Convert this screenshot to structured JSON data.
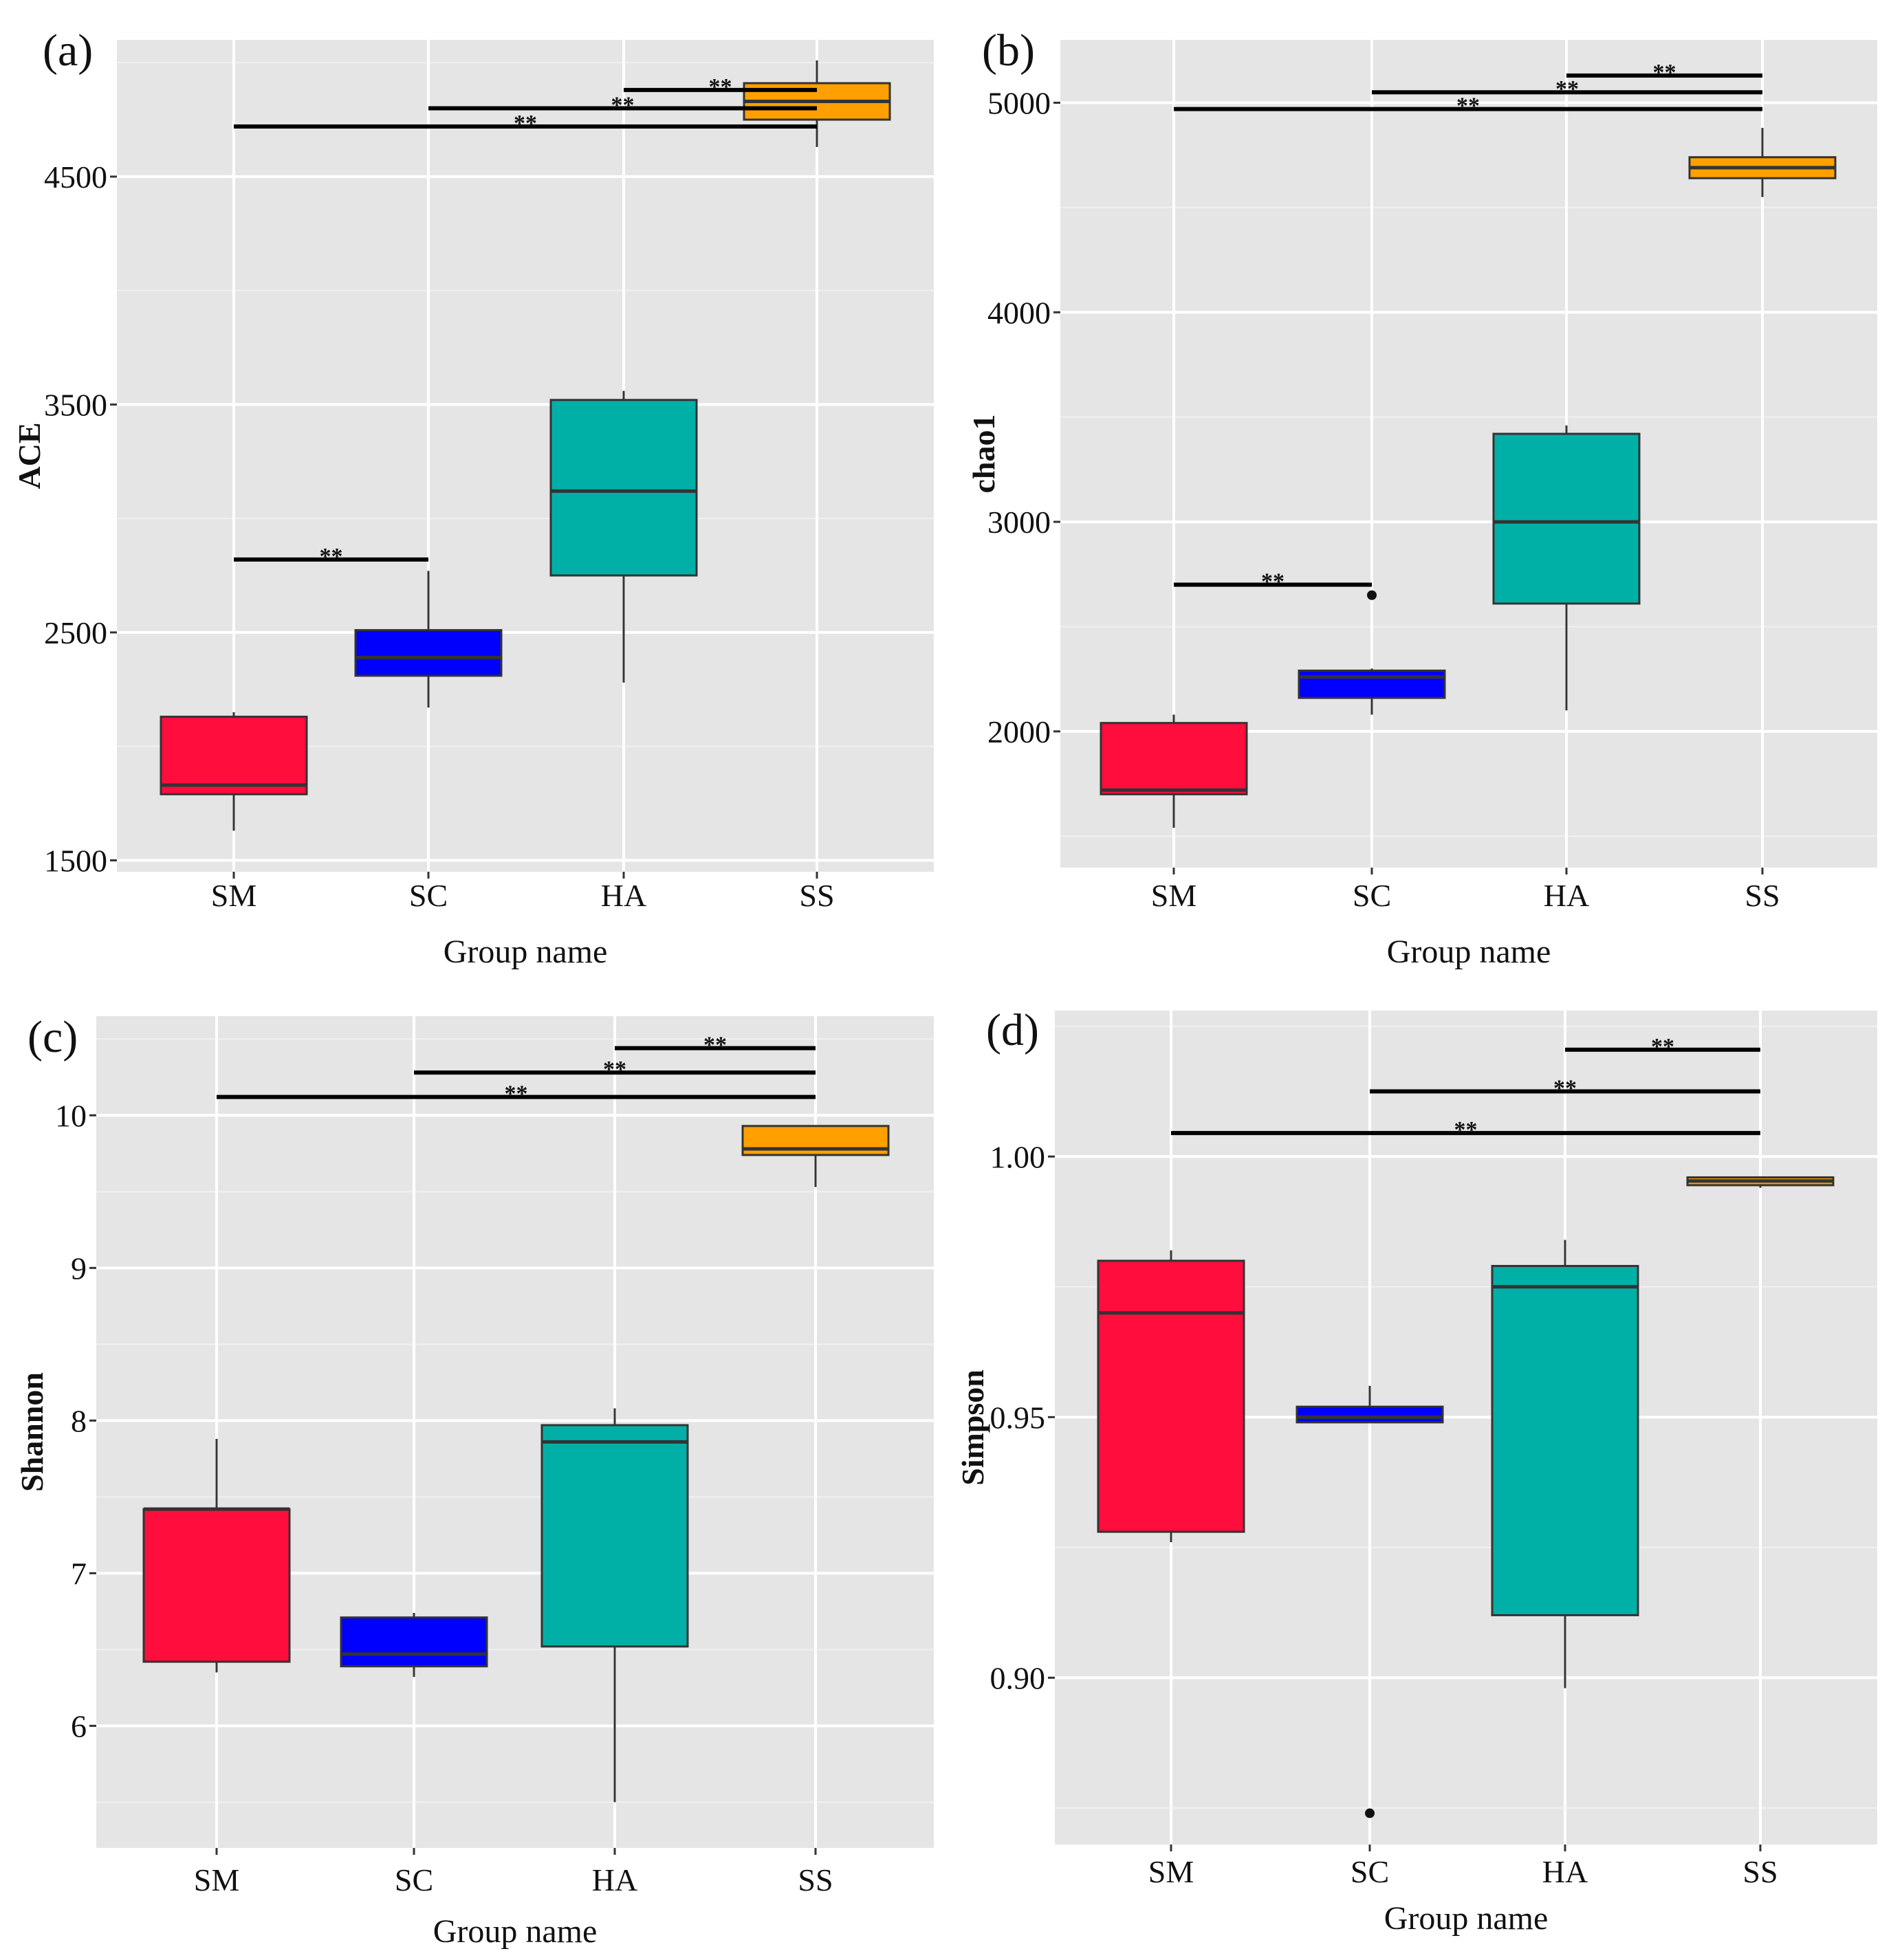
{
  "colors": {
    "panel_background": "#e5e5e5",
    "grid_major": "#ffffff",
    "grid_minor": "#f0f0f0",
    "SM": "#ff0d3c",
    "SC": "#0000ff",
    "HA": "#00b0a7",
    "SS": "#ffa000",
    "outline": "#333333",
    "bracket": "#000000"
  },
  "chart_data": [
    {
      "type": "boxplot",
      "panel_label": "(a)",
      "xlabel": "Group name",
      "ylabel": "ACE",
      "categories": [
        "SM",
        "SC",
        "HA",
        "SS"
      ],
      "ylim": [
        1450,
        5100
      ],
      "yticks": [
        1500,
        2500,
        3500,
        4500
      ],
      "ytick_labels": [
        "1500",
        "2500",
        "3500",
        "4500"
      ],
      "grid": true,
      "boxes": [
        {
          "group": "SM",
          "whisker_low": 1630,
          "q1": 1790,
          "median": 1830,
          "q3": 2130,
          "whisker_high": 2150
        },
        {
          "group": "SC",
          "whisker_low": 2170,
          "q1": 2310,
          "median": 2390,
          "q3": 2510,
          "whisker_high": 2770
        },
        {
          "group": "HA",
          "whisker_low": 2280,
          "q1": 2750,
          "median": 3120,
          "q3": 3520,
          "whisker_high": 3560
        },
        {
          "group": "SS",
          "whisker_low": 4630,
          "q1": 4750,
          "median": 4830,
          "q3": 4910,
          "whisker_high": 5010
        }
      ],
      "outliers": [],
      "significance": [
        {
          "from": "HA",
          "to": "SS",
          "label": "**",
          "y": 4880
        },
        {
          "from": "SC",
          "to": "SS",
          "label": "**",
          "y": 4800
        },
        {
          "from": "SM",
          "to": "SS",
          "label": "**",
          "y": 4720
        },
        {
          "from": "SM",
          "to": "SC",
          "label": "**",
          "y": 2820
        }
      ]
    },
    {
      "type": "boxplot",
      "panel_label": "(b)",
      "xlabel": "Group name",
      "ylabel": "chao1",
      "categories": [
        "SM",
        "SC",
        "HA",
        "SS"
      ],
      "ylim": [
        1350,
        5300
      ],
      "yticks": [
        2000,
        3000,
        4000,
        5000
      ],
      "ytick_labels": [
        "2000",
        "3000",
        "4000",
        "5000"
      ],
      "grid": true,
      "boxes": [
        {
          "group": "SM",
          "whisker_low": 1540,
          "q1": 1700,
          "median": 1720,
          "q3": 2040,
          "whisker_high": 2080
        },
        {
          "group": "SC",
          "whisker_low": 2080,
          "q1": 2160,
          "median": 2260,
          "q3": 2290,
          "whisker_high": 2300
        },
        {
          "group": "HA",
          "whisker_low": 2100,
          "q1": 2610,
          "median": 3000,
          "q3": 3420,
          "whisker_high": 3460
        },
        {
          "group": "SS",
          "whisker_low": 4550,
          "q1": 4640,
          "median": 4690,
          "q3": 4740,
          "whisker_high": 4880
        }
      ],
      "outliers": [
        {
          "group": "SC",
          "value": 2650
        }
      ],
      "significance": [
        {
          "from": "HA",
          "to": "SS",
          "label": "**",
          "y": 5130
        },
        {
          "from": "SC",
          "to": "SS",
          "label": "**",
          "y": 5050
        },
        {
          "from": "SM",
          "to": "SS",
          "label": "**",
          "y": 4970
        },
        {
          "from": "SM",
          "to": "SC",
          "label": "**",
          "y": 2700
        }
      ]
    },
    {
      "type": "boxplot",
      "panel_label": "(c)",
      "xlabel": "Group name",
      "ylabel": "Shannon",
      "categories": [
        "SM",
        "SC",
        "HA",
        "SS"
      ],
      "ylim": [
        5.2,
        10.65
      ],
      "yticks": [
        6,
        7,
        8,
        9,
        10
      ],
      "ytick_labels": [
        "6",
        "7",
        "8",
        "9",
        "10"
      ],
      "grid": true,
      "boxes": [
        {
          "group": "SM",
          "whisker_low": 6.35,
          "q1": 6.42,
          "median": 7.42,
          "q3": 7.42,
          "whisker_high": 7.88
        },
        {
          "group": "SC",
          "whisker_low": 6.32,
          "q1": 6.39,
          "median": 6.47,
          "q3": 6.71,
          "whisker_high": 6.74
        },
        {
          "group": "HA",
          "whisker_low": 5.5,
          "q1": 6.52,
          "median": 7.86,
          "q3": 7.97,
          "whisker_high": 8.08
        },
        {
          "group": "SS",
          "whisker_low": 9.53,
          "q1": 9.74,
          "median": 9.78,
          "q3": 9.93,
          "whisker_high": 9.93
        }
      ],
      "outliers": [],
      "significance": [
        {
          "from": "HA",
          "to": "SS",
          "label": "**",
          "y": 10.44
        },
        {
          "from": "SC",
          "to": "SS",
          "label": "**",
          "y": 10.28
        },
        {
          "from": "SM",
          "to": "SS",
          "label": "**",
          "y": 10.12
        }
      ]
    },
    {
      "type": "boxplot",
      "panel_label": "(d)",
      "xlabel": "Group name",
      "ylabel": "Simpson",
      "categories": [
        "SM",
        "SC",
        "HA",
        "SS"
      ],
      "ylim": [
        0.868,
        1.028
      ],
      "yticks": [
        0.9,
        0.95,
        1.0
      ],
      "ytick_labels": [
        "0.90",
        "0.95",
        "1.00"
      ],
      "grid": true,
      "boxes": [
        {
          "group": "SM",
          "whisker_low": 0.926,
          "q1": 0.928,
          "median": 0.97,
          "q3": 0.98,
          "whisker_high": 0.982
        },
        {
          "group": "SC",
          "whisker_low": 0.949,
          "q1": 0.949,
          "median": 0.95,
          "q3": 0.952,
          "whisker_high": 0.956
        },
        {
          "group": "HA",
          "whisker_low": 0.898,
          "q1": 0.912,
          "median": 0.975,
          "q3": 0.979,
          "whisker_high": 0.984
        },
        {
          "group": "SS",
          "whisker_low": 0.994,
          "q1": 0.9945,
          "median": 0.9953,
          "q3": 0.996,
          "whisker_high": 0.996
        }
      ],
      "outliers": [
        {
          "group": "SC",
          "value": 0.874
        }
      ],
      "significance": [
        {
          "from": "HA",
          "to": "SS",
          "label": "**",
          "y": 1.0205
        },
        {
          "from": "SC",
          "to": "SS",
          "label": "**",
          "y": 1.0125
        },
        {
          "from": "SM",
          "to": "SS",
          "label": "**",
          "y": 1.0045
        }
      ]
    }
  ]
}
